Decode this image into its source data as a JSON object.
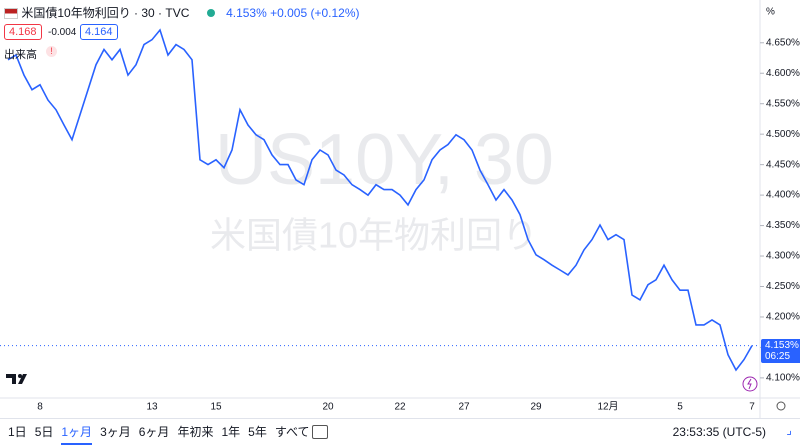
{
  "chart_data": {
    "type": "line",
    "categories": [
      null,
      null,
      null,
      null,
      "8",
      null,
      null,
      null,
      null,
      null,
      null,
      null,
      null,
      null,
      null,
      null,
      null,
      null,
      "13",
      null,
      null,
      null,
      null,
      null,
      null,
      null,
      "15",
      null,
      null,
      null,
      null,
      null,
      null,
      null,
      null,
      null,
      null,
      null,
      null,
      null,
      "20",
      null,
      null,
      null,
      null,
      null,
      null,
      null,
      null,
      "22",
      null,
      null,
      null,
      null,
      null,
      null,
      null,
      "27",
      null,
      null,
      null,
      null,
      null,
      null,
      null,
      null,
      "29",
      null,
      null,
      null,
      null,
      null,
      null,
      null,
      null,
      "12月",
      null,
      null,
      null,
      null,
      null,
      null,
      null,
      null,
      "5",
      null,
      null,
      null,
      null,
      null,
      null,
      null,
      null,
      "7"
    ],
    "values": [
      4.622,
      4.63,
      4.597,
      4.573,
      4.581,
      4.556,
      4.54,
      4.515,
      4.491,
      4.532,
      4.573,
      4.614,
      4.639,
      4.622,
      4.639,
      4.597,
      4.614,
      4.647,
      4.655,
      4.671,
      4.63,
      4.647,
      4.639,
      4.622,
      4.458,
      4.45,
      4.458,
      4.445,
      4.474,
      4.54,
      4.515,
      4.499,
      4.491,
      4.466,
      4.45,
      4.45,
      4.425,
      4.417,
      4.458,
      4.474,
      4.466,
      4.441,
      4.433,
      4.417,
      4.409,
      4.4,
      4.417,
      4.409,
      4.409,
      4.4,
      4.384,
      4.409,
      4.425,
      4.458,
      4.474,
      4.483,
      4.499,
      4.491,
      4.474,
      4.441,
      4.417,
      4.392,
      4.409,
      4.392,
      4.368,
      4.327,
      4.302,
      4.294,
      4.285,
      4.277,
      4.269,
      4.285,
      4.31,
      4.327,
      4.351,
      4.327,
      4.335,
      4.327,
      4.236,
      4.228,
      4.253,
      4.261,
      4.285,
      4.261,
      4.244,
      4.244,
      4.187,
      4.187,
      4.195,
      4.187,
      4.138,
      4.113,
      4.13,
      4.153
    ],
    "color": "#2962ff",
    "ylim": [
      4.067,
      4.712
    ],
    "yticks": [
      {
        "value": 4.1,
        "label": "4.100%"
      },
      {
        "value": 4.15,
        "label": "4.150%"
      },
      {
        "value": 4.2,
        "label": "4.200%"
      },
      {
        "value": 4.25,
        "label": "4.250%"
      },
      {
        "value": 4.3,
        "label": "4.300%"
      },
      {
        "value": 4.35,
        "label": "4.350%"
      },
      {
        "value": 4.4,
        "label": "4.400%"
      },
      {
        "value": 4.45,
        "label": "4.450%"
      },
      {
        "value": 4.5,
        "label": "4.500%"
      },
      {
        "value": 4.55,
        "label": "4.550%"
      },
      {
        "value": 4.6,
        "label": "4.600%"
      },
      {
        "value": 4.65,
        "label": "4.650%"
      }
    ],
    "grid": false,
    "axis_unit": "%",
    "price_tag": {
      "price": "4.153%",
      "countdown": "06:25"
    },
    "watermark": {
      "symbol": "US10Y, 30",
      "name": "米国債10年物利回り"
    }
  },
  "header": {
    "symbol": "米国債10年物利回り · 30 · TVC",
    "last": "4.153%",
    "change": "+0.005",
    "change_pct": "(+0.12%)",
    "bid": "4.168",
    "spread": "-0.004",
    "ask": "4.164",
    "volume": "出来高"
  },
  "toolbar": {
    "ranges": [
      "1日",
      "5日",
      "1ヶ月",
      "3ヶ月",
      "6ヶ月",
      "年初来",
      "1年",
      "5年",
      "すべて"
    ],
    "active": "1ヶ月",
    "time": "23:53:35 (UTC-5)"
  }
}
